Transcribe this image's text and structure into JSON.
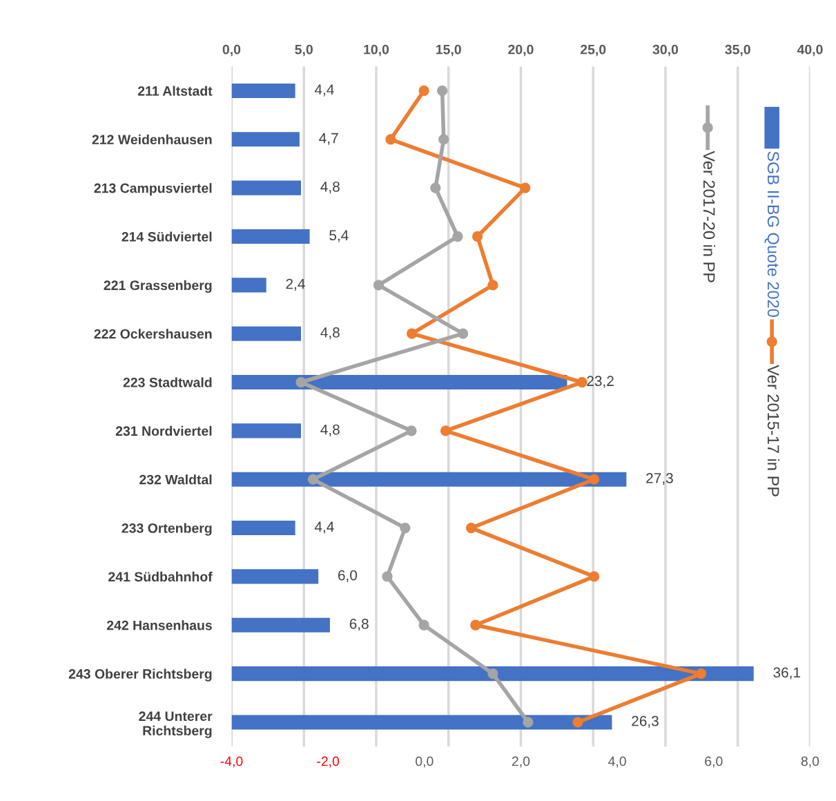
{
  "chart_data": {
    "type": "bar",
    "orientation": "horizontal",
    "categories": [
      "211 Altstadt",
      "212 Weidenhausen",
      "213 Campusviertel",
      "214 Südviertel",
      "221 Grassenberg",
      "222 Ockershausen",
      "223 Stadtwald",
      "231 Nordviertel",
      "232 Waldtal",
      "233 Ortenberg",
      "241 Südbahnhof",
      "242 Hansenhaus",
      "243 Oberer Richtsberg",
      "244 Unterer\nRichtsberg"
    ],
    "series": [
      {
        "name": "SGB II-BG Quote 2020",
        "axis": "x2",
        "color": "#4472c4",
        "values": [
          4.4,
          4.7,
          4.8,
          5.4,
          2.4,
          4.8,
          23.2,
          4.8,
          27.3,
          4.4,
          6.0,
          6.8,
          36.1,
          26.3
        ],
        "value_labels": [
          "4,4",
          "4,7",
          "4,8",
          "5,4",
          "2,4",
          "4,8",
          "23,2",
          "4,8",
          "27,3",
          "4,4",
          "6,0",
          "6,8",
          "36,1",
          "26,3"
        ]
      },
      {
        "name": "Ver 2015-17 in PP",
        "type": "line",
        "color": "#ed7d31",
        "values": [
          -0.01,
          -0.7,
          2.09,
          1.1,
          1.42,
          -0.26,
          3.27,
          0.44,
          3.52,
          0.97,
          3.52,
          1.06,
          5.74,
          3.18
        ]
      },
      {
        "name": "Ver 2017-20 in PP",
        "type": "line",
        "color": "#a5a5a5",
        "values": [
          0.37,
          0.4,
          0.23,
          0.69,
          -0.95,
          0.8,
          -2.56,
          -0.27,
          -2.31,
          -0.4,
          -0.77,
          -0.01,
          1.42,
          2.15
        ]
      }
    ],
    "x2lim": [
      0,
      40
    ],
    "x2ticks": [
      {
        "value": 0,
        "label": "0,0"
      },
      {
        "value": 5,
        "label": "5,0"
      },
      {
        "value": 10,
        "label": "10,0"
      },
      {
        "value": 15,
        "label": "15,0"
      },
      {
        "value": 20,
        "label": "20,0"
      },
      {
        "value": 25,
        "label": "25,0"
      },
      {
        "value": 30,
        "label": "30,0"
      },
      {
        "value": 35,
        "label": "35,0"
      },
      {
        "value": 40,
        "label": "40,0"
      }
    ],
    "xlim": [
      -4,
      8
    ],
    "xticks": [
      {
        "value": -4,
        "label": "-4,0"
      },
      {
        "value": -2,
        "label": "-2,0"
      },
      {
        "value": 0,
        "label": "0,0"
      },
      {
        "value": 2,
        "label": "2,0"
      },
      {
        "value": 4,
        "label": "4,0"
      },
      {
        "value": 6,
        "label": "6,0"
      },
      {
        "value": 8,
        "label": "8,0"
      }
    ],
    "grid": "x2",
    "legend": "right",
    "marker": "circle",
    "line_style": "solid"
  }
}
